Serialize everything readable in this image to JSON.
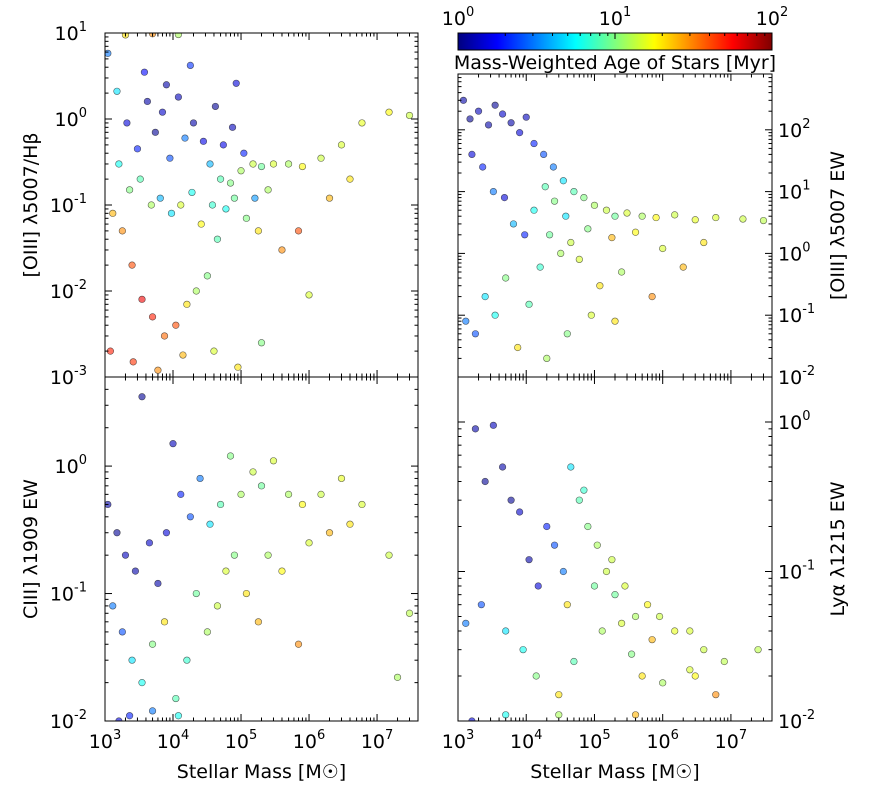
{
  "colorbar": {
    "label": "Mass-Weighted Age of Stars [Myr]",
    "scale": "log",
    "range": [
      1,
      100
    ],
    "colormap": "jet",
    "tick_labels": [
      {
        "base": "10",
        "exp": "0"
      },
      {
        "base": "10",
        "exp": "1"
      },
      {
        "base": "10",
        "exp": "2"
      }
    ]
  },
  "chart_data": [
    {
      "type": "scatter",
      "panel": "top-left",
      "xlabel": "Stellar Mass [M☉]",
      "ylabel": "[OIII] λ5007/Hβ",
      "x_scale": "log",
      "y_scale": "log",
      "xlim": [
        1000,
        40000000
      ],
      "ylim": [
        0.001,
        10
      ],
      "y_axis_side": "left",
      "y_tick_labels": [
        {
          "base": "10",
          "exp": "-3"
        },
        {
          "base": "10",
          "exp": "-2"
        },
        {
          "base": "10",
          "exp": "-1"
        },
        {
          "base": "10",
          "exp": "0"
        },
        {
          "base": "10",
          "exp": "1"
        }
      ],
      "points": [
        [
          1100,
          5.8,
          3
        ],
        [
          1500,
          2.1,
          5
        ],
        [
          2100,
          0.9,
          1.5
        ],
        [
          3000,
          0.45,
          2
        ],
        [
          4200,
          1.6,
          1.2
        ],
        [
          5500,
          0.7,
          1.1
        ],
        [
          7000,
          1.2,
          1.4
        ],
        [
          9000,
          0.35,
          2.5
        ],
        [
          12000,
          1.8,
          1.3
        ],
        [
          15000,
          0.6,
          3
        ],
        [
          20000,
          0.9,
          1.2
        ],
        [
          28000,
          0.55,
          1.6
        ],
        [
          35000,
          0.3,
          4
        ],
        [
          50000,
          0.2,
          8
        ],
        [
          70000,
          0.18,
          10
        ],
        [
          100000,
          0.25,
          12
        ],
        [
          150000,
          0.3,
          14
        ],
        [
          200000,
          0.28,
          9
        ],
        [
          300000,
          0.3,
          15
        ],
        [
          500000,
          0.3,
          12
        ],
        [
          800000,
          0.28,
          18
        ],
        [
          1500000,
          0.35,
          14
        ],
        [
          3000000,
          0.5,
          15
        ],
        [
          6000000,
          0.9,
          16
        ],
        [
          15000000,
          1.2,
          18
        ],
        [
          30000000,
          1.1,
          14
        ],
        [
          1300,
          0.08,
          25
        ],
        [
          1800,
          0.05,
          30
        ],
        [
          2500,
          0.02,
          40
        ],
        [
          3500,
          0.008,
          60
        ],
        [
          5000,
          0.005,
          50
        ],
        [
          7500,
          0.003,
          35
        ],
        [
          11000,
          0.004,
          40
        ],
        [
          16000,
          0.007,
          20
        ],
        [
          22000,
          0.01,
          12
        ],
        [
          32000,
          0.015,
          10
        ],
        [
          45000,
          0.04,
          8
        ],
        [
          60000,
          0.09,
          6
        ],
        [
          80000,
          0.12,
          9
        ],
        [
          120000,
          0.07,
          10
        ],
        [
          180000,
          0.05,
          20
        ],
        [
          250000,
          0.15,
          12
        ],
        [
          400000,
          0.03,
          30
        ],
        [
          700000,
          0.05,
          40
        ],
        [
          1000000,
          0.009,
          15
        ],
        [
          2000000,
          0.12,
          25
        ],
        [
          4000000,
          0.2,
          20
        ],
        [
          1200,
          0.002,
          50
        ],
        [
          2600,
          0.0015,
          45
        ],
        [
          6000,
          0.0012,
          30
        ],
        [
          14000,
          0.0018,
          25
        ],
        [
          40000,
          0.002,
          15
        ],
        [
          90000,
          0.0013,
          20
        ],
        [
          200000,
          0.0025,
          10
        ],
        [
          1600,
          0.3,
          6
        ],
        [
          2300,
          0.15,
          10
        ],
        [
          3300,
          0.2,
          8
        ],
        [
          4800,
          0.1,
          12
        ],
        [
          6500,
          0.12,
          4
        ],
        [
          9500,
          0.08,
          5
        ],
        [
          13000,
          0.1,
          15
        ],
        [
          19000,
          0.14,
          6
        ],
        [
          26000,
          0.06,
          18
        ],
        [
          38000,
          0.1,
          7
        ],
        [
          55000,
          0.5,
          1.6
        ],
        [
          75000,
          0.8,
          1.3
        ],
        [
          110000,
          0.4,
          2
        ],
        [
          160000,
          0.12,
          3.5
        ],
        [
          3800,
          3.5,
          1.8
        ],
        [
          8000,
          2.5,
          1.2
        ],
        [
          18000,
          4.2,
          2.2
        ],
        [
          42000,
          1.4,
          1.1
        ],
        [
          85000,
          2.6,
          1.5
        ],
        [
          2000,
          9.5,
          20
        ],
        [
          5000,
          9.8,
          30
        ],
        [
          12000,
          9.6,
          12
        ]
      ]
    },
    {
      "type": "scatter",
      "panel": "top-right",
      "xlabel": "Stellar Mass [M☉]",
      "ylabel": "[OIII] λ5007 EW",
      "x_scale": "log",
      "y_scale": "log",
      "xlim": [
        1000,
        40000000
      ],
      "ylim": [
        0.01,
        800
      ],
      "y_axis_side": "right",
      "y_tick_labels": [
        {
          "base": "10",
          "exp": "-2"
        },
        {
          "base": "10",
          "exp": "-1"
        },
        {
          "base": "10",
          "exp": "0"
        },
        {
          "base": "10",
          "exp": "1"
        },
        {
          "base": "10",
          "exp": "2"
        }
      ],
      "points": [
        [
          1200,
          300,
          1.2
        ],
        [
          1500,
          150,
          1.1
        ],
        [
          2000,
          200,
          1.3
        ],
        [
          2800,
          120,
          1.2
        ],
        [
          3500,
          250,
          1.1
        ],
        [
          4500,
          180,
          1.4
        ],
        [
          6000,
          130,
          1.2
        ],
        [
          8000,
          90,
          1.5
        ],
        [
          10000,
          160,
          1.3
        ],
        [
          13000,
          60,
          2
        ],
        [
          18000,
          40,
          2.5
        ],
        [
          25000,
          25,
          3
        ],
        [
          35000,
          15,
          5
        ],
        [
          50000,
          10,
          8
        ],
        [
          70000,
          8,
          10
        ],
        [
          100000,
          6,
          12
        ],
        [
          150000,
          5,
          14
        ],
        [
          200000,
          4,
          9
        ],
        [
          300000,
          4.5,
          15
        ],
        [
          500000,
          4,
          12
        ],
        [
          800000,
          3.8,
          18
        ],
        [
          1500000,
          4.2,
          14
        ],
        [
          3000000,
          3.5,
          16
        ],
        [
          6000000,
          3.8,
          15
        ],
        [
          15000000,
          3.6,
          14
        ],
        [
          30000000,
          3.4,
          13
        ],
        [
          1300,
          0.08,
          3
        ],
        [
          1800,
          0.05,
          2.5
        ],
        [
          2500,
          0.2,
          5
        ],
        [
          3500,
          0.1,
          6
        ],
        [
          5000,
          0.4,
          10
        ],
        [
          7500,
          0.03,
          20
        ],
        [
          11000,
          0.15,
          8
        ],
        [
          16000,
          0.6,
          7
        ],
        [
          22000,
          2,
          9
        ],
        [
          32000,
          1,
          12
        ],
        [
          45000,
          1.5,
          14
        ],
        [
          60000,
          0.8,
          15
        ],
        [
          80000,
          2.5,
          10
        ],
        [
          120000,
          0.3,
          20
        ],
        [
          180000,
          1.8,
          25
        ],
        [
          250000,
          0.5,
          12
        ],
        [
          400000,
          2.2,
          18
        ],
        [
          700000,
          0.2,
          30
        ],
        [
          1000000,
          1.2,
          15
        ],
        [
          2000000,
          0.6,
          25
        ],
        [
          4000000,
          1.5,
          20
        ],
        [
          20000,
          0.02,
          12
        ],
        [
          40000,
          0.05,
          10
        ],
        [
          90000,
          0.1,
          15
        ],
        [
          200000,
          0.08,
          20
        ],
        [
          1600,
          40,
          1.5
        ],
        [
          2300,
          25,
          2
        ],
        [
          3300,
          10,
          3
        ],
        [
          4800,
          8,
          1.5
        ],
        [
          6500,
          3,
          4
        ],
        [
          9500,
          2,
          2
        ],
        [
          13000,
          5,
          6
        ],
        [
          19000,
          12,
          8
        ],
        [
          26000,
          7,
          10
        ],
        [
          38000,
          4,
          5
        ]
      ]
    },
    {
      "type": "scatter",
      "panel": "bottom-left",
      "xlabel": "Stellar Mass [M☉]",
      "ylabel": "CIII] λ1909 EW",
      "x_scale": "log",
      "y_scale": "log",
      "xlim": [
        1000,
        40000000
      ],
      "ylim": [
        0.01,
        5
      ],
      "y_axis_side": "left",
      "y_tick_labels": [
        {
          "base": "10",
          "exp": "-2"
        },
        {
          "base": "10",
          "exp": "-1"
        },
        {
          "base": "10",
          "exp": "0"
        }
      ],
      "points": [
        [
          1100,
          0.5,
          1.2
        ],
        [
          1500,
          0.3,
          1.1
        ],
        [
          2000,
          0.2,
          1.3
        ],
        [
          2800,
          0.15,
          1.2
        ],
        [
          3500,
          3.5,
          1.1
        ],
        [
          4500,
          0.25,
          1.4
        ],
        [
          6000,
          0.12,
          1.2
        ],
        [
          8000,
          0.3,
          1.5
        ],
        [
          10000,
          1.5,
          1.3
        ],
        [
          13000,
          0.6,
          2
        ],
        [
          18000,
          0.4,
          2.5
        ],
        [
          25000,
          0.8,
          3
        ],
        [
          35000,
          0.35,
          5
        ],
        [
          50000,
          0.5,
          8
        ],
        [
          70000,
          1.2,
          10
        ],
        [
          100000,
          0.6,
          12
        ],
        [
          150000,
          0.9,
          14
        ],
        [
          200000,
          0.7,
          9
        ],
        [
          300000,
          1.1,
          15
        ],
        [
          500000,
          0.6,
          12
        ],
        [
          800000,
          0.5,
          18
        ],
        [
          1500000,
          0.6,
          14
        ],
        [
          3000000,
          0.8,
          16
        ],
        [
          6000000,
          0.5,
          15
        ],
        [
          15000000,
          0.2,
          14
        ],
        [
          30000000,
          0.07,
          13
        ],
        [
          1300,
          0.08,
          3
        ],
        [
          1800,
          0.05,
          2.5
        ],
        [
          2500,
          0.03,
          5
        ],
        [
          3500,
          0.02,
          6
        ],
        [
          5000,
          0.04,
          10
        ],
        [
          7500,
          0.06,
          20
        ],
        [
          11000,
          0.015,
          8
        ],
        [
          16000,
          0.03,
          7
        ],
        [
          22000,
          0.1,
          9
        ],
        [
          32000,
          0.05,
          12
        ],
        [
          45000,
          0.08,
          14
        ],
        [
          60000,
          0.15,
          15
        ],
        [
          80000,
          0.2,
          10
        ],
        [
          120000,
          0.1,
          20
        ],
        [
          180000,
          0.06,
          25
        ],
        [
          250000,
          0.2,
          12
        ],
        [
          400000,
          0.15,
          18
        ],
        [
          700000,
          0.04,
          30
        ],
        [
          1000000,
          0.25,
          15
        ],
        [
          2000000,
          0.3,
          25
        ],
        [
          4000000,
          0.35,
          20
        ],
        [
          20000000,
          0.022,
          12
        ],
        [
          1600,
          0.01,
          1.5
        ],
        [
          2300,
          0.011,
          2
        ],
        [
          5000,
          0.012,
          3
        ],
        [
          12000,
          0.011,
          6
        ]
      ]
    },
    {
      "type": "scatter",
      "panel": "bottom-right",
      "xlabel": "Stellar Mass [M☉]",
      "ylabel": "Lyα λ1215 EW",
      "x_scale": "log",
      "y_scale": "log",
      "xlim": [
        1000,
        40000000
      ],
      "ylim": [
        0.01,
        2
      ],
      "y_axis_side": "right",
      "y_tick_labels": [
        {
          "base": "10",
          "exp": "-2"
        },
        {
          "base": "10",
          "exp": "-1"
        },
        {
          "base": "10",
          "exp": "0"
        }
      ],
      "points": [
        [
          1800,
          0.9,
          1.2
        ],
        [
          2500,
          0.4,
          1.1
        ],
        [
          3300,
          0.95,
          1.3
        ],
        [
          4500,
          0.5,
          1.2
        ],
        [
          6000,
          0.3,
          1.1
        ],
        [
          8000,
          0.25,
          1.4
        ],
        [
          11000,
          0.12,
          1.2
        ],
        [
          15000,
          0.08,
          1.5
        ],
        [
          20000,
          0.2,
          2
        ],
        [
          26000,
          0.15,
          2.5
        ],
        [
          35000,
          0.1,
          3
        ],
        [
          45000,
          0.5,
          5
        ],
        [
          60000,
          0.3,
          8
        ],
        [
          80000,
          0.2,
          10
        ],
        [
          110000,
          0.15,
          12
        ],
        [
          150000,
          0.1,
          14
        ],
        [
          200000,
          0.07,
          9
        ],
        [
          280000,
          0.08,
          15
        ],
        [
          400000,
          0.05,
          12
        ],
        [
          600000,
          0.06,
          18
        ],
        [
          900000,
          0.05,
          14
        ],
        [
          1500000,
          0.04,
          16
        ],
        [
          2500000,
          0.04,
          15
        ],
        [
          4000000,
          0.03,
          14
        ],
        [
          8000000,
          0.025,
          13
        ],
        [
          25000000,
          0.03,
          13
        ],
        [
          1300,
          0.045,
          3
        ],
        [
          2200,
          0.06,
          2.5
        ],
        [
          5000,
          0.04,
          5
        ],
        [
          9000,
          0.03,
          6
        ],
        [
          14000,
          0.02,
          10
        ],
        [
          30000,
          0.015,
          20
        ],
        [
          50000,
          0.025,
          8
        ],
        [
          70000,
          0.35,
          7
        ],
        [
          100000,
          0.08,
          9
        ],
        [
          130000,
          0.04,
          12
        ],
        [
          180000,
          0.12,
          14
        ],
        [
          250000,
          0.045,
          15
        ],
        [
          350000,
          0.028,
          10
        ],
        [
          500000,
          0.02,
          20
        ],
        [
          700000,
          0.035,
          25
        ],
        [
          1000000,
          0.018,
          12
        ],
        [
          3000000,
          0.02,
          18
        ],
        [
          6000000,
          0.015,
          30
        ],
        [
          40000,
          0.06,
          20
        ],
        [
          2500000,
          0.022,
          15
        ],
        [
          1600,
          0.01,
          1.5
        ],
        [
          5000,
          0.011,
          6
        ],
        [
          30000,
          0.011,
          12
        ],
        [
          400000,
          0.011,
          25
        ]
      ]
    }
  ]
}
